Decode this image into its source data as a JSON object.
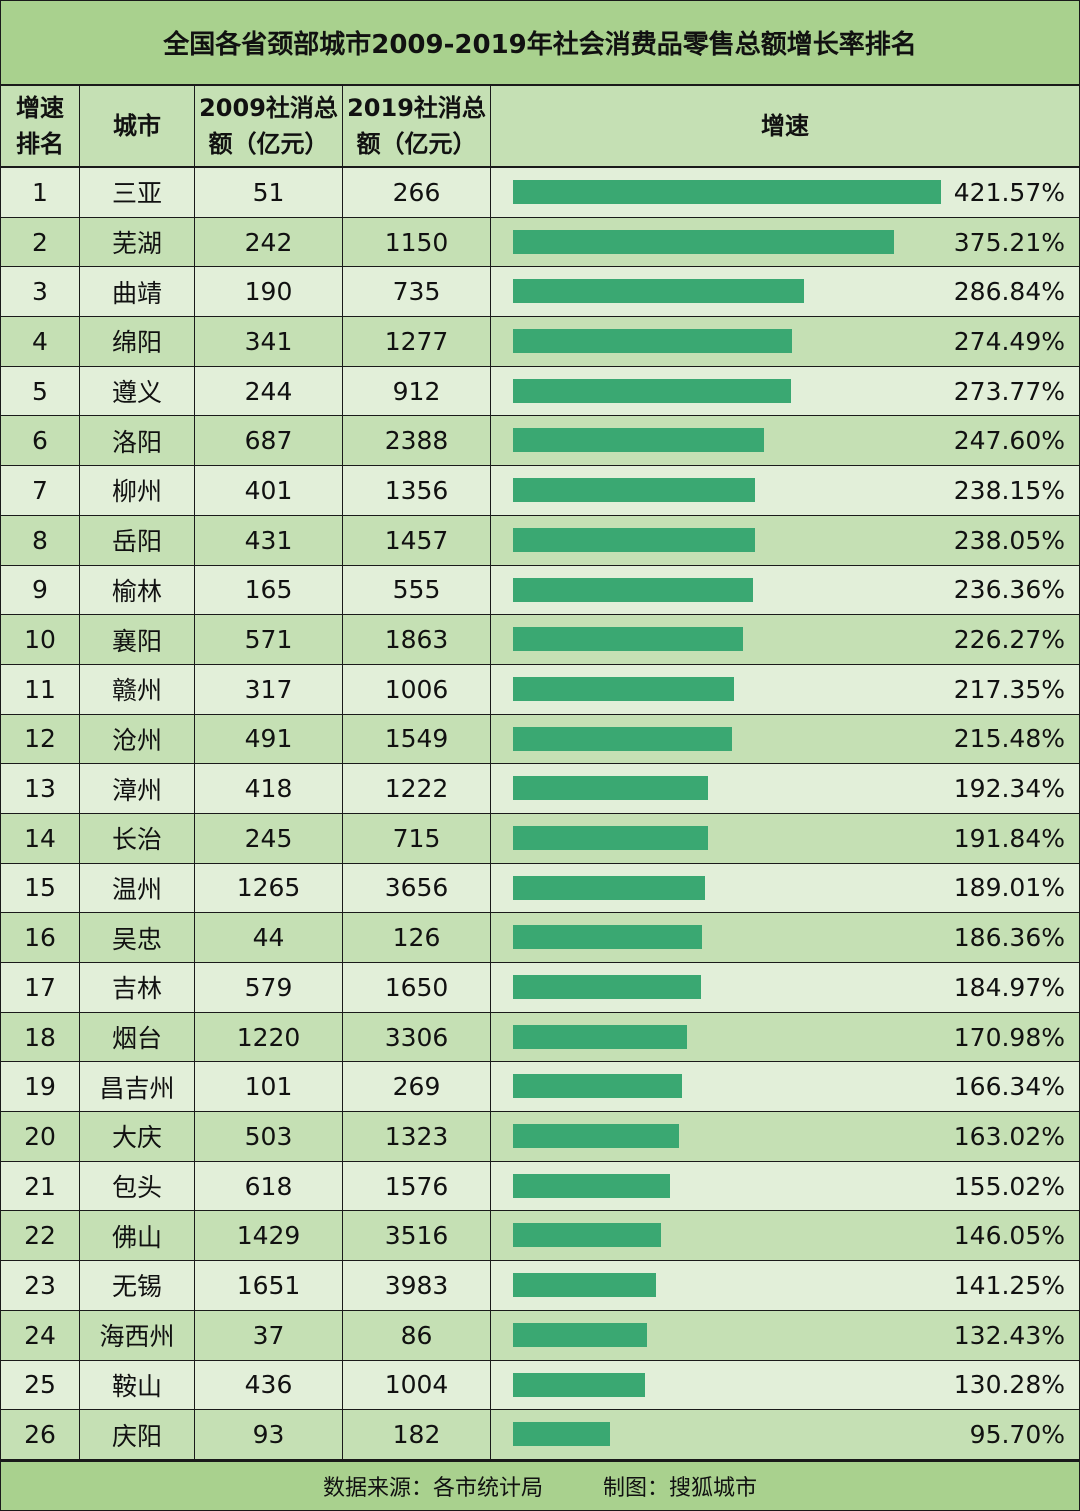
{
  "title": "全国各省颈部城市2009-2019年社会消费品零售总额增长率排名",
  "headers": {
    "rank_l1": "增速",
    "rank_l2": "排名",
    "city": "城市",
    "v2009_l1": "2009社消总",
    "v2009_l2": "额（亿元）",
    "v2019_l1": "2019社消总",
    "v2019_l2": "额（亿元）",
    "growth": "增速"
  },
  "footer": {
    "source": "数据来源：各市统计局",
    "maker": "制图：搜狐城市"
  },
  "colors": {
    "title_bg": "#a9d18e",
    "row_light": "#e2efd9",
    "row_dark": "#c5e0b4",
    "bar": "#3aa872"
  },
  "chart_data": {
    "type": "table",
    "value_max": 421.57,
    "rows": [
      {
        "rank": "1",
        "city": "三亚",
        "v2009": "51",
        "v2019": "266",
        "growth": 421.57,
        "growth_label": "421.57%"
      },
      {
        "rank": "2",
        "city": "芜湖",
        "v2009": "242",
        "v2019": "1150",
        "growth": 375.21,
        "growth_label": "375.21%"
      },
      {
        "rank": "3",
        "city": "曲靖",
        "v2009": "190",
        "v2019": "735",
        "growth": 286.84,
        "growth_label": "286.84%"
      },
      {
        "rank": "4",
        "city": "绵阳",
        "v2009": "341",
        "v2019": "1277",
        "growth": 274.49,
        "growth_label": "274.49%"
      },
      {
        "rank": "5",
        "city": "遵义",
        "v2009": "244",
        "v2019": "912",
        "growth": 273.77,
        "growth_label": "273.77%"
      },
      {
        "rank": "6",
        "city": "洛阳",
        "v2009": "687",
        "v2019": "2388",
        "growth": 247.6,
        "growth_label": "247.60%"
      },
      {
        "rank": "7",
        "city": "柳州",
        "v2009": "401",
        "v2019": "1356",
        "growth": 238.15,
        "growth_label": "238.15%"
      },
      {
        "rank": "8",
        "city": "岳阳",
        "v2009": "431",
        "v2019": "1457",
        "growth": 238.05,
        "growth_label": "238.05%"
      },
      {
        "rank": "9",
        "city": "榆林",
        "v2009": "165",
        "v2019": "555",
        "growth": 236.36,
        "growth_label": "236.36%"
      },
      {
        "rank": "10",
        "city": "襄阳",
        "v2009": "571",
        "v2019": "1863",
        "growth": 226.27,
        "growth_label": "226.27%"
      },
      {
        "rank": "11",
        "city": "赣州",
        "v2009": "317",
        "v2019": "1006",
        "growth": 217.35,
        "growth_label": "217.35%"
      },
      {
        "rank": "12",
        "city": "沧州",
        "v2009": "491",
        "v2019": "1549",
        "growth": 215.48,
        "growth_label": "215.48%"
      },
      {
        "rank": "13",
        "city": "漳州",
        "v2009": "418",
        "v2019": "1222",
        "growth": 192.34,
        "growth_label": "192.34%"
      },
      {
        "rank": "14",
        "city": "长治",
        "v2009": "245",
        "v2019": "715",
        "growth": 191.84,
        "growth_label": "191.84%"
      },
      {
        "rank": "15",
        "city": "温州",
        "v2009": "1265",
        "v2019": "3656",
        "growth": 189.01,
        "growth_label": "189.01%"
      },
      {
        "rank": "16",
        "city": "吴忠",
        "v2009": "44",
        "v2019": "126",
        "growth": 186.36,
        "growth_label": "186.36%"
      },
      {
        "rank": "17",
        "city": "吉林",
        "v2009": "579",
        "v2019": "1650",
        "growth": 184.97,
        "growth_label": "184.97%"
      },
      {
        "rank": "18",
        "city": "烟台",
        "v2009": "1220",
        "v2019": "3306",
        "growth": 170.98,
        "growth_label": "170.98%"
      },
      {
        "rank": "19",
        "city": "昌吉州",
        "v2009": "101",
        "v2019": "269",
        "growth": 166.34,
        "growth_label": "166.34%"
      },
      {
        "rank": "20",
        "city": "大庆",
        "v2009": "503",
        "v2019": "1323",
        "growth": 163.02,
        "growth_label": "163.02%"
      },
      {
        "rank": "21",
        "city": "包头",
        "v2009": "618",
        "v2019": "1576",
        "growth": 155.02,
        "growth_label": "155.02%"
      },
      {
        "rank": "22",
        "city": "佛山",
        "v2009": "1429",
        "v2019": "3516",
        "growth": 146.05,
        "growth_label": "146.05%"
      },
      {
        "rank": "23",
        "city": "无锡",
        "v2009": "1651",
        "v2019": "3983",
        "growth": 141.25,
        "growth_label": "141.25%"
      },
      {
        "rank": "24",
        "city": "海西州",
        "v2009": "37",
        "v2019": "86",
        "growth": 132.43,
        "growth_label": "132.43%"
      },
      {
        "rank": "25",
        "city": "鞍山",
        "v2009": "436",
        "v2019": "1004",
        "growth": 130.28,
        "growth_label": "130.28%"
      },
      {
        "rank": "26",
        "city": "庆阳",
        "v2009": "93",
        "v2019": "182",
        "growth": 95.7,
        "growth_label": "95.70%"
      }
    ]
  }
}
